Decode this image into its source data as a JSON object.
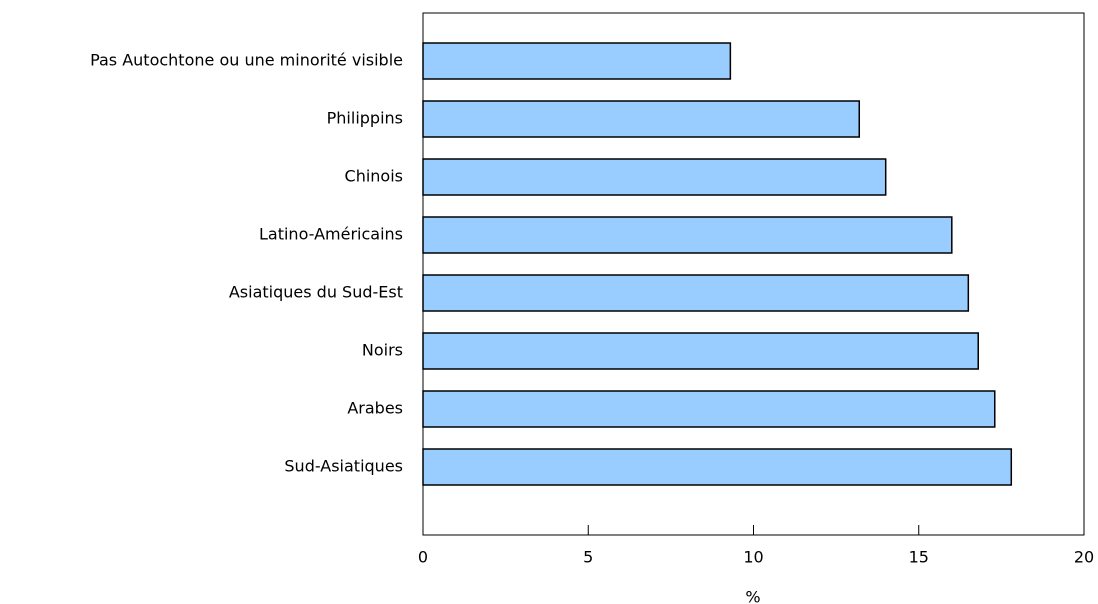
{
  "chart_data": {
    "type": "bar",
    "orientation": "horizontal",
    "categories": [
      "Pas Autochtone ou une minorité visible",
      "Philippins",
      "Chinois",
      "Latino-Américains",
      "Asiatiques du Sud-Est",
      "Noirs",
      "Arabes",
      "Sud-Asiatiques"
    ],
    "values": [
      9.3,
      13.2,
      14.0,
      16.0,
      16.5,
      16.8,
      17.3,
      17.8
    ],
    "color": "#99ccff",
    "xlabel": "%",
    "xlim": [
      0,
      20
    ],
    "xticks": [
      0,
      5,
      10,
      15,
      20
    ],
    "grid": false
  }
}
